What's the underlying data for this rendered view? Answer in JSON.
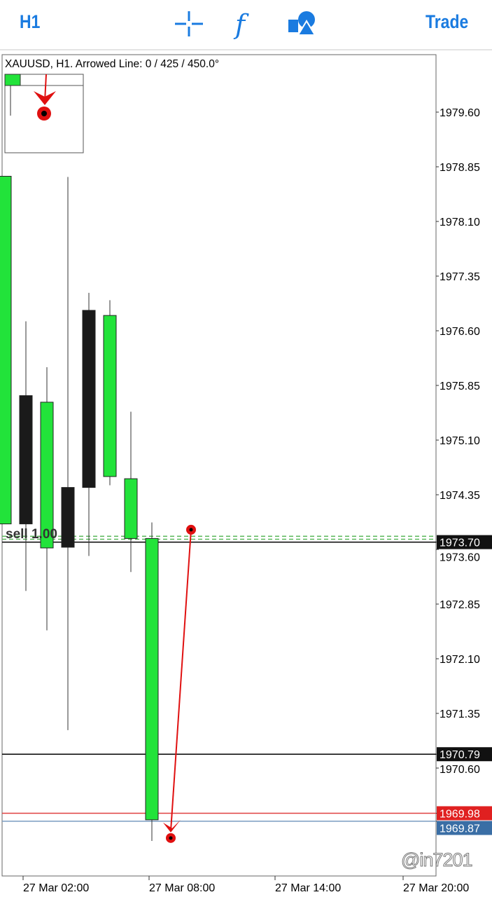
{
  "toolbar": {
    "timeframe": "H1",
    "trade_label": "Trade",
    "icons": [
      "crosshair-icon",
      "function-icon",
      "objects-icon"
    ],
    "accent": "#1a7be0"
  },
  "chart": {
    "title": "XAUUSD, H1. Arrowed Line: 0 / 425 / 450.0°",
    "price_ticks": [
      "1979.60",
      "1978.85",
      "1978.10",
      "1977.35",
      "1976.60",
      "1975.85",
      "1975.10",
      "1974.35",
      "1973.60",
      "1972.85",
      "1972.10",
      "1971.35",
      "1970.60"
    ],
    "time_ticks": [
      "27 Mar 02:00",
      "27 Mar 08:00",
      "27 Mar 14:00",
      "27 Mar 20:00"
    ],
    "labels": {
      "price_current": "1973.70",
      "level_black": "1970.79",
      "level_red": "1969.98",
      "bid": "1969.87",
      "order": "sell 1.00"
    },
    "colors": {
      "bull": "#22e33a",
      "bear": "#1a1a1a",
      "arrow": "#e01010",
      "bid_bg": "#3a6ea5",
      "ask_bg": "#e02020"
    },
    "watermark": "@in7201"
  },
  "chart_data": {
    "type": "candlestick",
    "symbol": "XAUUSD",
    "timeframe": "H1",
    "ylim": [
      1969.2,
      1980.4
    ],
    "candles": [
      {
        "o": 1973.95,
        "h": 1978.72,
        "l": 1973.95,
        "c": 1978.72,
        "color": "green"
      },
      {
        "o": 1975.71,
        "h": 1976.73,
        "l": 1973.03,
        "c": 1973.95,
        "color": "black"
      },
      {
        "o": 1973.62,
        "h": 1976.1,
        "l": 1972.49,
        "c": 1975.62,
        "color": "green"
      },
      {
        "o": 1974.45,
        "h": 1978.71,
        "l": 1971.12,
        "c": 1973.63,
        "color": "black"
      },
      {
        "o": 1976.88,
        "h": 1977.12,
        "l": 1973.51,
        "c": 1974.45,
        "color": "black"
      },
      {
        "o": 1974.6,
        "h": 1977.02,
        "l": 1974.48,
        "c": 1976.81,
        "color": "green"
      },
      {
        "o": 1973.75,
        "h": 1975.49,
        "l": 1973.29,
        "c": 1974.57,
        "color": "green"
      },
      {
        "o": 1969.89,
        "h": 1973.97,
        "l": 1969.6,
        "c": 1973.75,
        "color": "green"
      }
    ],
    "lines": [
      {
        "price": 1973.7,
        "style": "solid",
        "color": "#000"
      },
      {
        "price": 1973.78,
        "style": "dashed",
        "color": "#5cb85c"
      },
      {
        "price": 1973.74,
        "style": "dashed",
        "color": "#5cb85c"
      },
      {
        "price": 1970.79,
        "style": "solid",
        "color": "#000"
      },
      {
        "price": 1969.98,
        "style": "solid",
        "color": "#e04040"
      },
      {
        "price": 1969.87,
        "style": "solid",
        "color": "#7a9cc0"
      }
    ],
    "arrowed_line": {
      "from_price": 1973.87,
      "to_price": 1969.64
    }
  }
}
